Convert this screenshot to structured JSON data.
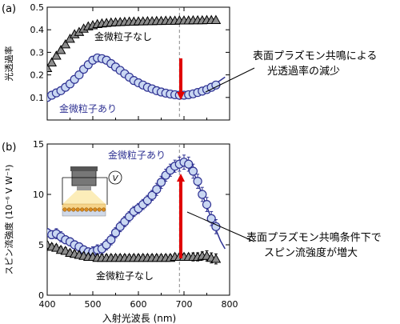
{
  "panels": {
    "a": {
      "label": "(a)"
    },
    "b": {
      "label": "(b)"
    }
  },
  "annotations": {
    "a_callout_line1": "表面プラズモン共鳴による",
    "a_callout_line2": "光透過率の減少",
    "b_callout_line1": "表面プラズモン共鳴条件下で",
    "b_callout_line2": "スピン流強度が増大"
  },
  "inset": {
    "voltmeter_symbol": "V"
  },
  "colors": {
    "with_np": "#2e3192",
    "with_np_fill": "#c9d7f2",
    "without_np": "#000000",
    "without_np_fill": "#8c8c8c",
    "arrow": "#e00000",
    "resonance_line": "#888888"
  },
  "chart_data": [
    {
      "type": "scatter",
      "panel": "a",
      "ylabel": "光透過率",
      "xlim": [
        400,
        800
      ],
      "ylim": [
        0,
        0.5
      ],
      "xticks": [
        400,
        500,
        600,
        700,
        800
      ],
      "yticks": [
        0.1,
        0.2,
        0.3,
        0.4,
        0.5
      ],
      "ytick_labels": [
        "0.1",
        "0.2",
        "0.3",
        "0.4",
        "0.5"
      ],
      "resonance_x": 690,
      "series": [
        {
          "name": "金微粒子なし",
          "marker": "triangle",
          "x": [
            400,
            410,
            420,
            430,
            440,
            450,
            460,
            470,
            480,
            490,
            500,
            510,
            520,
            530,
            540,
            550,
            560,
            570,
            580,
            590,
            600,
            610,
            620,
            630,
            640,
            650,
            660,
            670,
            680,
            690,
            700,
            710,
            720,
            730,
            740,
            750,
            760,
            770
          ],
          "y": [
            0.23,
            0.255,
            0.285,
            0.31,
            0.335,
            0.36,
            0.38,
            0.39,
            0.405,
            0.415,
            0.42,
            0.425,
            0.428,
            0.43,
            0.432,
            0.433,
            0.434,
            0.435,
            0.436,
            0.436,
            0.437,
            0.437,
            0.438,
            0.438,
            0.439,
            0.439,
            0.44,
            0.44,
            0.44,
            0.441,
            0.441,
            0.441,
            0.442,
            0.442,
            0.442,
            0.443,
            0.443,
            0.443
          ]
        },
        {
          "name": "金微粒子あり",
          "marker": "circle",
          "x": [
            400,
            410,
            420,
            430,
            440,
            450,
            460,
            470,
            480,
            490,
            500,
            510,
            520,
            530,
            540,
            550,
            560,
            570,
            580,
            590,
            600,
            610,
            620,
            630,
            640,
            650,
            660,
            670,
            680,
            690,
            700,
            710,
            720,
            730,
            740,
            750,
            760,
            770
          ],
          "y": [
            0.1,
            0.11,
            0.12,
            0.13,
            0.145,
            0.16,
            0.18,
            0.2,
            0.225,
            0.245,
            0.265,
            0.275,
            0.272,
            0.265,
            0.25,
            0.235,
            0.22,
            0.205,
            0.19,
            0.175,
            0.165,
            0.155,
            0.145,
            0.138,
            0.13,
            0.124,
            0.119,
            0.115,
            0.112,
            0.11,
            0.11,
            0.112,
            0.116,
            0.122,
            0.128,
            0.135,
            0.145,
            0.155
          ]
        }
      ],
      "fit": {
        "x": [
          765,
          790
        ],
        "y": [
          0.155,
          0.19
        ]
      }
    },
    {
      "type": "scatter",
      "panel": "b",
      "xlabel": "入射光波長 (nm)",
      "ylabel": "スピン流強度 (10⁻⁶ V W⁻¹)",
      "xlim": [
        400,
        800
      ],
      "ylim": [
        0,
        15
      ],
      "xticks": [
        400,
        500,
        600,
        700,
        800
      ],
      "yticks": [
        0,
        5,
        10,
        15
      ],
      "ytick_labels": [
        "0",
        "5",
        "10",
        "15"
      ],
      "resonance_x": 690,
      "series": [
        {
          "name": "金微粒子あり",
          "marker": "circle",
          "x": [
            400,
            410,
            420,
            430,
            440,
            450,
            460,
            470,
            480,
            490,
            500,
            510,
            520,
            530,
            540,
            550,
            560,
            570,
            580,
            590,
            600,
            610,
            620,
            630,
            640,
            650,
            660,
            670,
            680,
            690,
            700,
            710,
            720,
            730,
            740,
            750,
            760,
            770
          ],
          "y": [
            6.2,
            6.0,
            6.1,
            5.8,
            5.5,
            5.3,
            5.0,
            4.8,
            4.5,
            4.3,
            4.3,
            4.5,
            4.6,
            5.0,
            5.5,
            6.2,
            6.8,
            7.3,
            7.8,
            8.3,
            8.6,
            9.0,
            9.4,
            9.9,
            10.5,
            11.2,
            11.9,
            12.4,
            12.8,
            13.0,
            13.2,
            13.0,
            12.3,
            11.3,
            10.0,
            9.0,
            7.6,
            6.8
          ],
          "error": [
            0.4,
            0.4,
            0.5,
            0.5,
            0.4,
            0.4,
            0.4,
            0.4,
            0.4,
            0.4,
            0.5,
            0.5,
            0.5,
            0.5,
            0.5,
            0.5,
            0.5,
            0.5,
            0.5,
            0.5,
            0.5,
            0.5,
            0.5,
            0.5,
            0.6,
            0.6,
            0.6,
            0.6,
            0.6,
            0.7,
            0.7,
            0.7,
            0.7,
            0.7,
            0.7,
            0.7,
            0.7,
            0.7
          ]
        },
        {
          "name": "金微粒子なし",
          "marker": "triangle",
          "x": [
            400,
            410,
            420,
            430,
            440,
            450,
            460,
            470,
            480,
            490,
            500,
            510,
            520,
            530,
            540,
            550,
            560,
            570,
            580,
            590,
            600,
            610,
            620,
            630,
            640,
            650,
            660,
            670,
            680,
            690,
            700,
            710,
            720,
            730,
            740,
            750,
            760,
            770
          ],
          "y": [
            5.0,
            4.8,
            4.7,
            4.5,
            4.4,
            4.2,
            4.1,
            4.0,
            3.9,
            3.8,
            3.8,
            3.7,
            3.7,
            3.7,
            3.7,
            3.7,
            3.7,
            3.7,
            3.7,
            3.7,
            3.7,
            3.7,
            3.7,
            3.7,
            3.7,
            3.7,
            3.7,
            3.7,
            3.8,
            3.8,
            3.8,
            3.8,
            3.8,
            3.8,
            3.9,
            3.9,
            3.7,
            3.6
          ],
          "error": [
            0.3,
            0.3,
            0.3,
            0.3,
            0.3,
            0.3,
            0.3,
            0.3,
            0.3,
            0.3,
            0.3,
            0.3,
            0.3,
            0.3,
            0.3,
            0.3,
            0.3,
            0.3,
            0.3,
            0.3,
            0.3,
            0.3,
            0.3,
            0.3,
            0.3,
            0.3,
            0.3,
            0.3,
            0.3,
            0.3,
            0.3,
            0.3,
            0.4,
            0.4,
            0.4,
            0.5,
            0.5,
            0.5
          ]
        }
      ],
      "fit": {
        "x": [
          400,
          420,
          440,
          460,
          480,
          500,
          520,
          540,
          560,
          580,
          600,
          620,
          640,
          660,
          680,
          700,
          720,
          740,
          760,
          780,
          790
        ],
        "y": [
          6.2,
          5.8,
          5.4,
          4.9,
          4.5,
          4.3,
          4.6,
          5.4,
          6.7,
          7.8,
          8.6,
          9.4,
          10.5,
          11.9,
          12.8,
          13.1,
          12.3,
          10.0,
          7.6,
          5.4,
          4.6
        ]
      }
    }
  ]
}
